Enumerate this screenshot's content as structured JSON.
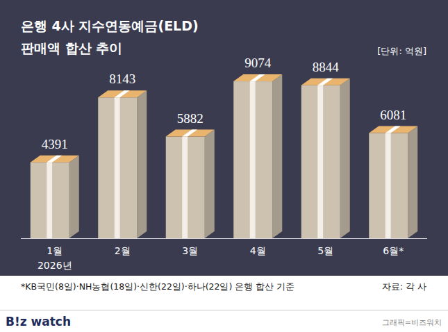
{
  "chart_data": {
    "type": "bar",
    "title": "은행 4사 지수연동예금(ELD)",
    "subtitle": "판매액 합산 추이",
    "unit": "[단위: 억원]",
    "categories": [
      "1월",
      "2월",
      "3월",
      "4월",
      "5월",
      "6월*"
    ],
    "x_annotation": "2026년",
    "values": [
      4391,
      8143,
      5882,
      9074,
      8844,
      6081
    ],
    "color": "#cdc2b0",
    "ylim": [
      0,
      10000
    ],
    "data_labels": true,
    "tick_labels": "x",
    "grid": false,
    "note": "*KB국민(8일)·NH농협(18일)·신한(22일)·하나(22일) 은행 합산 기준",
    "source": "자료: 각 사",
    "brand": "B!z watch",
    "credit": "그래픽=비즈워치"
  }
}
